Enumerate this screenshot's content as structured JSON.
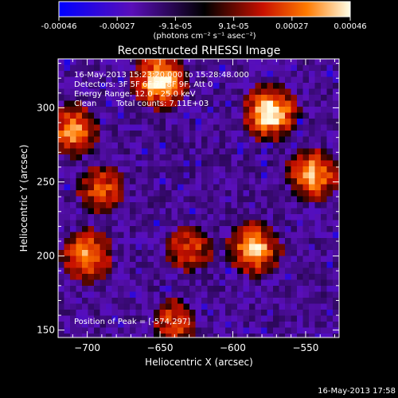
{
  "chart_data": {
    "type": "heatmap",
    "title": "Reconstructed RHESSI Image",
    "xlabel": "Heliocentric X (arcsec)",
    "ylabel": "Heliocentric Y (arcsec)",
    "xlim": [
      -720,
      -527
    ],
    "ylim": [
      145,
      333
    ],
    "x_ticks": [
      -700,
      -650,
      -600,
      -550
    ],
    "y_ticks": [
      150,
      200,
      250,
      300
    ],
    "colorbar": {
      "ticks": [
        "-0.00046",
        "-0.00027",
        "-9.1e-05",
        "9.1e-05",
        "0.00027",
        "0.00046"
      ],
      "min": -0.00046,
      "max": 0.00046,
      "unit_label": "(photons cm⁻² s⁻¹ asec⁻²)"
    },
    "annotations": {
      "time": "16-May-2013 15:23:20.000 to 15:28:48.000",
      "detectors": "Detectors: 3F 5F 6F 7F 8F 9F, Att 0",
      "energy": "Energy Range: 12.0 - 25.0 keV",
      "clean": "Clean",
      "counts": "Total counts: 7.11E+03",
      "peak": "Position of Peak = [-574,297]"
    },
    "peak": [
      -574,
      297
    ],
    "hot_regions": [
      {
        "x": -574,
        "y": 297,
        "amp": 1.0
      },
      {
        "x": -650,
        "y": 318,
        "amp": 0.95
      },
      {
        "x": -545,
        "y": 255,
        "amp": 0.75
      },
      {
        "x": -585,
        "y": 205,
        "amp": 0.8
      },
      {
        "x": -700,
        "y": 200,
        "amp": 0.7
      },
      {
        "x": -710,
        "y": 285,
        "amp": 0.7
      },
      {
        "x": -630,
        "y": 205,
        "amp": 0.45
      },
      {
        "x": -640,
        "y": 155,
        "amp": 0.45
      },
      {
        "x": -690,
        "y": 245,
        "amp": 0.5
      }
    ]
  },
  "footer_timestamp": "16-May-2013 17:58"
}
